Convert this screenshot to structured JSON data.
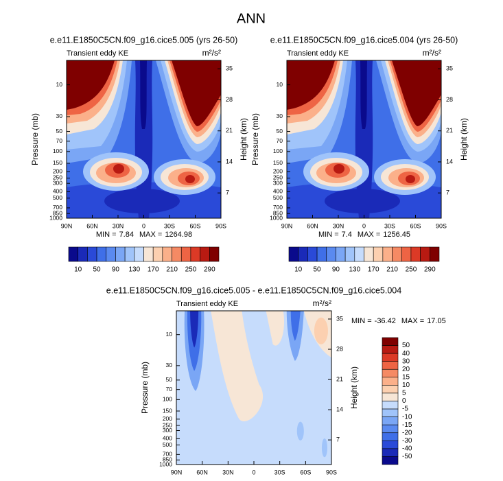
{
  "title": "ANN",
  "chart_data": [
    {
      "type": "contour",
      "title": "e.e11.E1850C5CN.f09_g16.cice5.005 (yrs 26-50)",
      "subtitle": "Transient eddy KE",
      "units": "m²/s²",
      "ylabel": "Pressure (mb)",
      "y2label": "Height (km)",
      "log_y": true,
      "xlim": [
        90,
        -90
      ],
      "xticks": [
        {
          "value": 90,
          "label": "90N"
        },
        {
          "value": 60,
          "label": "60N"
        },
        {
          "value": 30,
          "label": "30N"
        },
        0,
        {
          "value": -30,
          "label": "30S"
        },
        {
          "value": -60,
          "label": "60S"
        },
        {
          "value": -90,
          "label": "90S"
        }
      ],
      "ylim": [
        1000,
        4.3
      ],
      "yticks": [
        10,
        30,
        50,
        70,
        100,
        150,
        200,
        250,
        300,
        400,
        500,
        700,
        850,
        1000
      ],
      "y2lim": [
        1.3,
        36.9
      ],
      "y2ticks": [
        7,
        14,
        21,
        28,
        35
      ],
      "min_label": "MIN =",
      "min": 7.84,
      "max_label": "MAX =",
      "max": 1264.98,
      "colorbar": {
        "orientation": "horizontal",
        "colors": [
          "#0a0a8c",
          "#1a2ab8",
          "#2a4ad8",
          "#3f6fe8",
          "#5a8af0",
          "#7aa6f5",
          "#a0c4fa",
          "#c6dcfc",
          "#f7e6d6",
          "#fcd0b0",
          "#fbb08a",
          "#f58a64",
          "#ee6444",
          "#dc3a26",
          "#b81a12",
          "#7f0000"
        ],
        "labels": [
          10,
          50,
          90,
          130,
          170,
          210,
          250,
          290
        ]
      }
    },
    {
      "type": "contour",
      "title": "e.e11.E1850C5CN.f09_g16.cice5.004 (yrs 26-50)",
      "subtitle": "Transient eddy KE",
      "units": "m²/s²",
      "ylabel": "Pressure (mb)",
      "y2label": "Height (km)",
      "log_y": true,
      "xlim": [
        90,
        -90
      ],
      "xticks": [
        {
          "value": 90,
          "label": "90N"
        },
        {
          "value": 60,
          "label": "60N"
        },
        {
          "value": 30,
          "label": "30N"
        },
        0,
        {
          "value": -30,
          "label": "30S"
        },
        {
          "value": -60,
          "label": "60S"
        },
        {
          "value": -90,
          "label": "90S"
        }
      ],
      "ylim": [
        1000,
        4.3
      ],
      "yticks": [
        10,
        30,
        50,
        70,
        100,
        150,
        200,
        250,
        300,
        400,
        500,
        700,
        850,
        1000
      ],
      "y2lim": [
        1.3,
        36.9
      ],
      "y2ticks": [
        7,
        14,
        21,
        28,
        35
      ],
      "min_label": "MIN =",
      "min": 7.4,
      "max_label": "MAX =",
      "max": 1256.45,
      "colorbar": {
        "orientation": "horizontal",
        "colors": [
          "#0a0a8c",
          "#1a2ab8",
          "#2a4ad8",
          "#3f6fe8",
          "#5a8af0",
          "#7aa6f5",
          "#a0c4fa",
          "#c6dcfc",
          "#f7e6d6",
          "#fcd0b0",
          "#fbb08a",
          "#f58a64",
          "#ee6444",
          "#dc3a26",
          "#b81a12",
          "#7f0000"
        ],
        "labels": [
          10,
          50,
          90,
          130,
          170,
          210,
          250,
          290
        ]
      }
    },
    {
      "type": "contour",
      "title": "e.e11.E1850C5CN.f09_g16.cice5.005 - e.e11.E1850C5CN.f09_g16.cice5.004",
      "subtitle": "Transient eddy KE",
      "units": "m²/s²",
      "ylabel": "Pressure (mb)",
      "y2label": "Height (km)",
      "log_y": true,
      "xlim": [
        90,
        -90
      ],
      "xticks": [
        {
          "value": 90,
          "label": "90N"
        },
        {
          "value": 60,
          "label": "60N"
        },
        {
          "value": 30,
          "label": "30N"
        },
        0,
        {
          "value": -30,
          "label": "30S"
        },
        {
          "value": -60,
          "label": "60S"
        },
        {
          "value": -90,
          "label": "90S"
        }
      ],
      "ylim": [
        1000,
        4.3
      ],
      "yticks": [
        10,
        30,
        50,
        70,
        100,
        150,
        200,
        250,
        300,
        400,
        500,
        700,
        850,
        1000
      ],
      "y2lim": [
        1.3,
        36.9
      ],
      "y2ticks": [
        7,
        14,
        21,
        28,
        35
      ],
      "min_label": "MIN =",
      "min": -36.42,
      "max_label": "MAX =",
      "max": 17.05,
      "colorbar": {
        "orientation": "vertical",
        "colors": [
          "#7f0000",
          "#b81a12",
          "#dc3a26",
          "#ee6444",
          "#f58a64",
          "#fbb08a",
          "#fcd0b0",
          "#f7e6d6",
          "#c6dcfc",
          "#a0c4fa",
          "#7aa6f5",
          "#5a8af0",
          "#3f6fe8",
          "#2a4ad8",
          "#1a2ab8",
          "#0a0a8c"
        ],
        "labels": [
          50,
          40,
          30,
          20,
          15,
          10,
          5,
          0,
          -5,
          -10,
          -15,
          -20,
          -30,
          -40,
          -50
        ]
      }
    }
  ]
}
